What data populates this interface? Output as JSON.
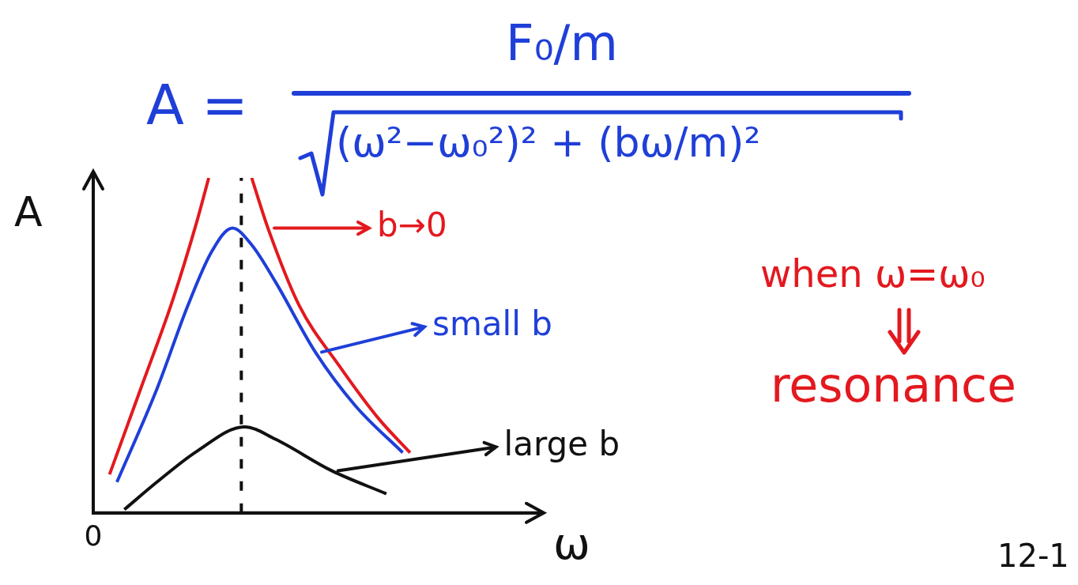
{
  "formula": {
    "lhs": "A =",
    "numerator": "F₀/m",
    "denominator": "(ω²−ω₀²)² + (bω/m)²"
  },
  "chart_data": {
    "type": "line",
    "x_label": "ω",
    "y_label": "A",
    "xlim": [
      0,
      3
    ],
    "ylim": [
      0,
      10
    ],
    "xticks": [
      0
    ],
    "yticks": [],
    "tick_labels": "x",
    "grid": false,
    "series": [
      {
        "name": "b→0",
        "color": "#e3191f",
        "x": [
          0.11,
          0.32,
          0.54,
          0.7,
          0.78,
          0.93,
          1.07,
          1.18,
          1.39,
          1.66,
          1.93,
          2.14
        ],
        "values": [
          1.15,
          3.7,
          6.4,
          8.7,
          10,
          null,
          10,
          8.5,
          6.2,
          4.4,
          2.8,
          1.8
        ]
      },
      {
        "name": "small b",
        "color": "#1f3fd8",
        "x": [
          0.16,
          0.43,
          0.64,
          0.8,
          0.94,
          1.07,
          1.23,
          1.5,
          1.77,
          2.09
        ],
        "values": [
          0.92,
          3.7,
          6.2,
          7.8,
          8.5,
          8.0,
          6.9,
          4.8,
          3.2,
          1.8
        ]
      },
      {
        "name": "large b",
        "color": "#111111",
        "x": [
          0.21,
          0.43,
          0.7,
          1.02,
          1.23,
          1.61,
          1.98
        ],
        "values": [
          0.1,
          0.92,
          1.84,
          2.57,
          2.2,
          1.26,
          0.57
        ]
      }
    ],
    "vlines": [
      {
        "x": 1,
        "color": "#111111",
        "line_style": "dashed"
      }
    ]
  },
  "annotation": {
    "lines": [
      "when ω=ω₀",
      "resonance"
    ],
    "color": "#e3191f"
  },
  "page_number": "12-1"
}
